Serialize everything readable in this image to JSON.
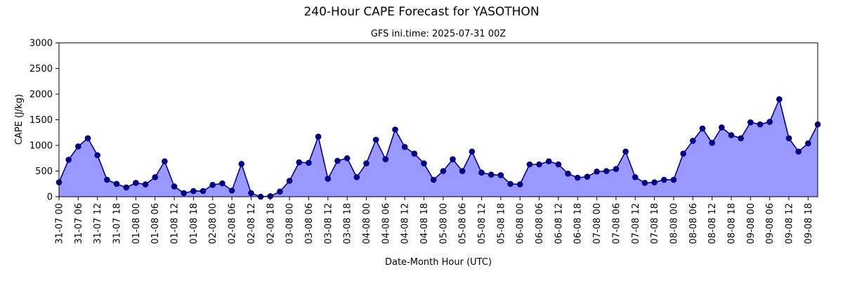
{
  "chart_data": {
    "type": "area",
    "title": "240-Hour CAPE Forecast for YASOTHON",
    "subtitle": "GFS ini.time: 2025-07-31 00Z",
    "xlabel": "Date-Month Hour (UTC)",
    "ylabel": "CAPE (J/kg)",
    "ylim": [
      0,
      3000
    ],
    "yticks": [
      0,
      500,
      1000,
      1500,
      2000,
      2500,
      3000
    ],
    "grid": false,
    "x_step_hours": 3,
    "x_start": "31-07 00",
    "xtick_labels": [
      "31-07 00",
      "31-07 06",
      "31-07 12",
      "31-07 18",
      "01-08 00",
      "01-08 06",
      "01-08 12",
      "01-08 18",
      "02-08 00",
      "02-08 06",
      "02-08 12",
      "02-08 18",
      "03-08 00",
      "03-08 06",
      "03-08 12",
      "03-08 18",
      "04-08 00",
      "04-08 06",
      "04-08 12",
      "04-08 18",
      "05-08 00",
      "05-08 06",
      "05-08 12",
      "05-08 18",
      "06-08 00",
      "06-08 06",
      "06-08 12",
      "06-08 18",
      "07-08 00",
      "07-08 06",
      "07-08 12",
      "07-08 18",
      "08-08 00",
      "08-08 06",
      "08-08 12",
      "08-08 18",
      "09-08 00",
      "09-08 06",
      "09-08 12",
      "09-08 18"
    ],
    "colors": {
      "line": "#00008b",
      "marker": "#00008b",
      "fill": "#9999ff"
    },
    "series": [
      {
        "values": [
          280,
          720,
          980,
          1140,
          810,
          330,
          250,
          180,
          270,
          240,
          380,
          690,
          200,
          70,
          110,
          110,
          230,
          260,
          120,
          640,
          70,
          0,
          10,
          100,
          310,
          670,
          660,
          1170,
          350,
          700,
          750,
          380,
          650,
          1110,
          730,
          1310,
          970,
          840,
          650,
          330,
          500,
          730,
          500,
          880,
          470,
          430,
          420,
          250,
          240,
          630,
          630,
          690,
          630,
          450,
          370,
          390,
          490,
          500,
          540,
          880,
          380,
          270,
          280,
          330,
          330,
          840,
          1090,
          1330,
          1050,
          1350,
          1200,
          1140,
          1450,
          1410,
          1460,
          1900,
          1140,
          880,
          1040,
          1410
        ]
      }
    ]
  }
}
